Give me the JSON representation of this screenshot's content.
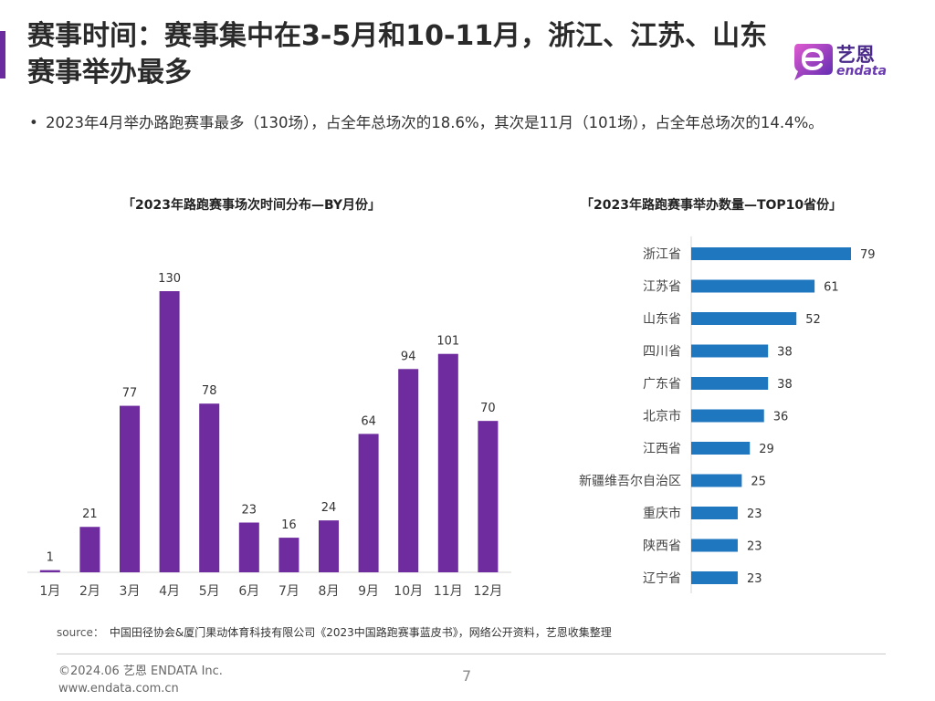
{
  "header": {
    "title": "赛事时间：赛事集中在3-5月和10-11月，浙江、江苏、山东赛事举办最多",
    "logo_cn": "艺恩",
    "logo_en": "endata"
  },
  "bullet": {
    "marker": "•",
    "text": "2023年4月举办路跑赛事最多（130场），占全年总场次的18.6%，其次是11月（101场），占全年总场次的14.4%。"
  },
  "colors": {
    "accent": "#6a2b9f",
    "bar_monthly": "#6e2c9e",
    "bar_province": "#1f77c0"
  },
  "chart_data": [
    {
      "type": "bar",
      "title": "「2023年路跑赛事场次时间分布—BY月份」",
      "categories": [
        "1月",
        "2月",
        "3月",
        "4月",
        "5月",
        "6月",
        "7月",
        "8月",
        "9月",
        "10月",
        "11月",
        "12月"
      ],
      "values": [
        1,
        21,
        77,
        130,
        78,
        23,
        16,
        24,
        64,
        94,
        101,
        70
      ],
      "grid": false
    },
    {
      "type": "bar",
      "orientation": "horizontal",
      "title": "「2023年路跑赛事举办数量—TOP10省份」",
      "categories": [
        "浙江省",
        "江苏省",
        "山东省",
        "四川省",
        "广东省",
        "北京市",
        "江西省",
        "新疆维吾尔自治区",
        "重庆市",
        "陕西省",
        "辽宁省"
      ],
      "values": [
        79,
        61,
        52,
        38,
        38,
        36,
        29,
        25,
        23,
        23,
        23
      ],
      "grid": false
    }
  ],
  "footer": {
    "source_prefix": "source：",
    "source_text": "中国田径协会&厦门果动体育科技有限公司《2023中国路跑赛事蓝皮书》，网络公开资料，艺恩收集整理",
    "copyright": "©2024.06  艺恩 ENDATA Inc.",
    "website": "www.endata.com.cn",
    "page": "7"
  }
}
